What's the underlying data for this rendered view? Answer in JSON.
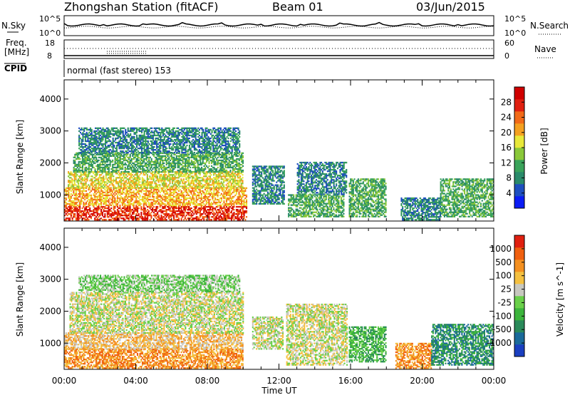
{
  "header": {
    "station": "Zhongshan Station (fitACF)",
    "beam": "Beam 01",
    "date": "03/Jun/2015"
  },
  "summary_panels": {
    "nsky_label": "N.Sky",
    "nsky_ticks": [
      "10^5",
      "10^0"
    ],
    "nsearch_label": "N.Search",
    "freq_label_1": "Freq.",
    "freq_label_2": "[MHz]",
    "freq_ticks": [
      "18",
      "8"
    ],
    "nave_ticks": [
      "60",
      "0"
    ],
    "nave_label": "Nave",
    "cpid_label": "CPID",
    "cpid_text": "normal (fast stereo) 153"
  },
  "chart_data": [
    {
      "type": "heatmap",
      "name": "power",
      "ylabel": "Slant Range [km]",
      "xlabel": "Time UT",
      "x_ticks": [
        "00:00",
        "04:00",
        "08:00",
        "12:00",
        "16:00",
        "20:00",
        "00:00"
      ],
      "x_range_hours": [
        0,
        24
      ],
      "y_ticks": [
        1000,
        2000,
        3000,
        4000
      ],
      "y_range_km": [
        180,
        4600
      ],
      "colorbar": {
        "label": "Power [dB]",
        "ticks": [
          "4",
          "8",
          "12",
          "16",
          "20",
          "24",
          "28"
        ],
        "colors": [
          "#0b1cf5",
          "#1e4fbf",
          "#2a8a6a",
          "#3aa35a",
          "#8ac83a",
          "#e8e83a",
          "#f4a020",
          "#f26a18",
          "#e02010",
          "#d00000"
        ]
      },
      "regions": [
        {
          "t0": 0.0,
          "t1": 10.2,
          "r0": 200,
          "r1": 650,
          "level": 8
        },
        {
          "t0": 0.0,
          "t1": 10.2,
          "r0": 650,
          "r1": 1200,
          "level": 6
        },
        {
          "t0": 0.2,
          "t1": 10.0,
          "r0": 1200,
          "r1": 1700,
          "level": 5
        },
        {
          "t0": 0.5,
          "t1": 10.0,
          "r0": 1700,
          "r1": 2300,
          "level": 3
        },
        {
          "t0": 0.8,
          "t1": 9.8,
          "r0": 2300,
          "r1": 3100,
          "level": 2
        },
        {
          "t0": 10.5,
          "t1": 12.3,
          "r0": 700,
          "r1": 1900,
          "level": 2
        },
        {
          "t0": 12.5,
          "t1": 15.6,
          "r0": 300,
          "r1": 1000,
          "level": 3
        },
        {
          "t0": 13.0,
          "t1": 15.8,
          "r0": 1000,
          "r1": 2000,
          "level": 2
        },
        {
          "t0": 15.9,
          "t1": 18.0,
          "r0": 300,
          "r1": 1500,
          "level": 3
        },
        {
          "t0": 18.8,
          "t1": 21.0,
          "r0": 200,
          "r1": 900,
          "level": 2
        },
        {
          "t0": 21.0,
          "t1": 24.0,
          "r0": 300,
          "r1": 1500,
          "level": 3
        }
      ]
    },
    {
      "type": "heatmap",
      "name": "velocity",
      "ylabel": "Slant Range [km]",
      "xlabel": "Time UT",
      "x_ticks": [
        "00:00",
        "04:00",
        "08:00",
        "12:00",
        "16:00",
        "20:00",
        "00:00"
      ],
      "x_range_hours": [
        0,
        24
      ],
      "y_ticks": [
        1000,
        2000,
        3000,
        4000
      ],
      "y_range_km": [
        180,
        4600
      ],
      "colorbar": {
        "label": "Velocity [m s^-1]",
        "ticks": [
          "1000",
          "500",
          "100",
          "25",
          "-25",
          "-100",
          "-500",
          "-1000"
        ],
        "colors": [
          "#1a3fc0",
          "#1a6a9a",
          "#2a8a5a",
          "#3cb43c",
          "#6ad04a",
          "#c8c8c0",
          "#f4c040",
          "#f49020",
          "#f06010",
          "#e02010"
        ]
      },
      "regions": [
        {
          "t0": 0.0,
          "t1": 10.0,
          "r0": 200,
          "r1": 800,
          "level": 7
        },
        {
          "t0": 0.0,
          "t1": 10.0,
          "r0": 800,
          "r1": 1300,
          "level": 6
        },
        {
          "t0": 0.3,
          "t1": 10.0,
          "r0": 1300,
          "r1": 2600,
          "level": 5
        },
        {
          "t0": 0.8,
          "t1": 9.8,
          "r0": 2600,
          "r1": 3100,
          "level": 4
        },
        {
          "t0": 10.5,
          "t1": 12.2,
          "r0": 800,
          "r1": 1800,
          "level": 5
        },
        {
          "t0": 12.4,
          "t1": 15.8,
          "r0": 300,
          "r1": 2200,
          "level": 5
        },
        {
          "t0": 15.9,
          "t1": 18.0,
          "r0": 400,
          "r1": 1500,
          "level": 3
        },
        {
          "t0": 18.5,
          "t1": 20.5,
          "r0": 200,
          "r1": 1000,
          "level": 7
        },
        {
          "t0": 20.5,
          "t1": 24.0,
          "r0": 300,
          "r1": 1600,
          "level": 2
        }
      ]
    }
  ]
}
